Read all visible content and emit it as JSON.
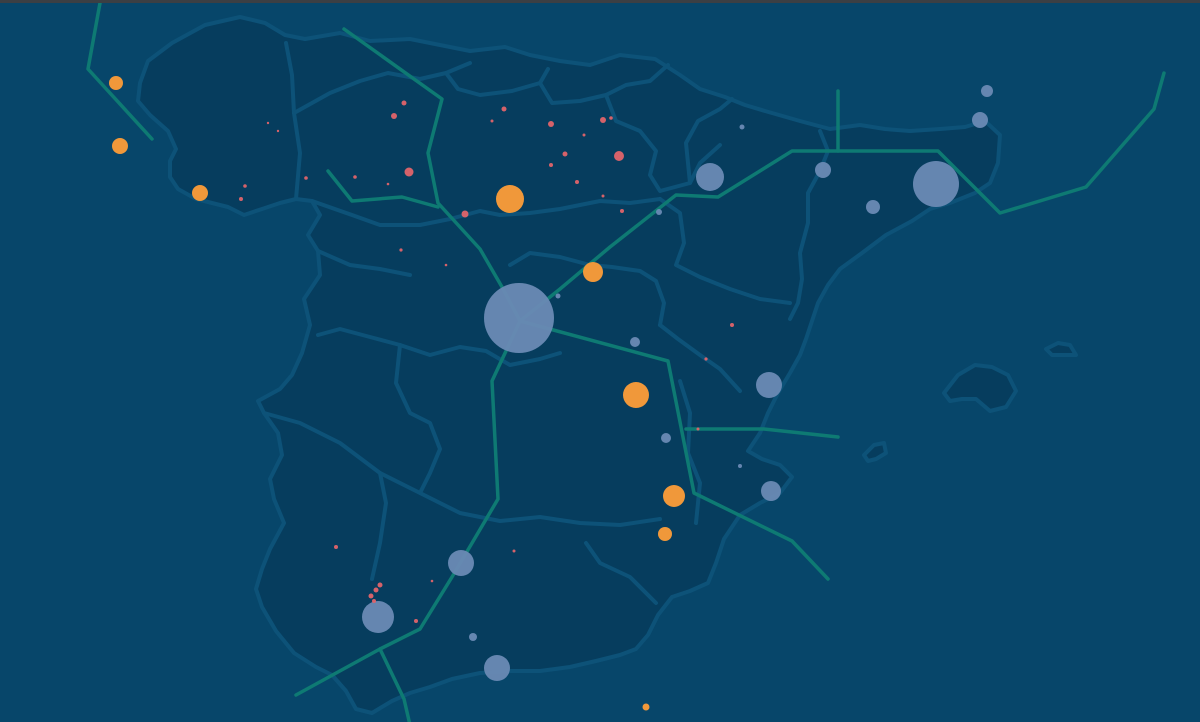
{
  "colors": {
    "background": "#07466a",
    "land": "#063d5e",
    "borders": "#0d5278",
    "routes": "#0e7a73",
    "primary_markers": "#6a8ab4",
    "secondary_markers": "#f0983a",
    "minor_markers": "#e0646a"
  },
  "marker_groups": [
    {
      "id": "primary",
      "color": "#6a8ab4",
      "opacity": 0.95
    },
    {
      "id": "secondary",
      "color": "#f0983a",
      "opacity": 1
    },
    {
      "id": "minor",
      "color": "#e0646a",
      "opacity": 0.95
    }
  ]
}
